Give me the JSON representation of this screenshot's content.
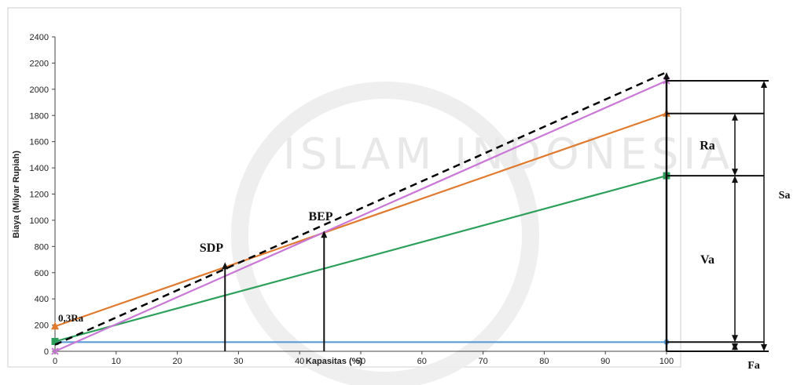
{
  "chart_data": {
    "type": "line",
    "xlabel": "Kapasitas (%)",
    "ylabel": "Biaya (Milyar Rupiah)",
    "xlim": [
      0,
      100
    ],
    "ylim": [
      0,
      2400
    ],
    "x_ticks": [
      0,
      10,
      20,
      30,
      40,
      50,
      60,
      70,
      80,
      90,
      100
    ],
    "y_ticks": [
      0,
      200,
      400,
      600,
      800,
      1000,
      1200,
      1400,
      1600,
      1800,
      2000,
      2200,
      2400
    ],
    "grid": false,
    "legend": "none",
    "series": [
      {
        "color": "#5b9bd5",
        "marker": "circle",
        "x": [
          0,
          100
        ],
        "y": [
          70,
          70
        ]
      },
      {
        "color": "#2ca05a",
        "marker": "square",
        "x": [
          0,
          100
        ],
        "y": [
          75,
          1340
        ]
      },
      {
        "color": "#e07a2f",
        "marker": "triangle",
        "x": [
          0,
          100
        ],
        "y": [
          190,
          1815
        ]
      },
      {
        "color": "#c978d6",
        "marker": "x",
        "x": [
          0,
          100
        ],
        "y": [
          0,
          2065
        ]
      },
      {
        "color": "#000000",
        "marker": "none",
        "dashed": true,
        "x": [
          0,
          100
        ],
        "y": [
          50,
          2130
        ]
      }
    ],
    "annotations": [
      {
        "text": "0,3Ra",
        "x": 0,
        "y": 190
      },
      {
        "text": "SDP",
        "x": 28,
        "y": 680
      },
      {
        "text": "BEP",
        "x": 44,
        "y": 920
      }
    ],
    "vertical_markers": [
      {
        "name": "SDP",
        "x": 27.8,
        "y": 680
      },
      {
        "name": "BEP",
        "x": 44,
        "y": 920
      }
    ],
    "right_brackets": [
      {
        "label": "Ra",
        "from": 1340,
        "to": 1815
      },
      {
        "label": "Va",
        "from": 70,
        "to": 1340
      },
      {
        "label": "Fa",
        "from": 0,
        "to": 70
      },
      {
        "label": "Sa",
        "from": 0,
        "to": 2065
      }
    ]
  },
  "watermark_text": "ISLAM INDONESIA"
}
